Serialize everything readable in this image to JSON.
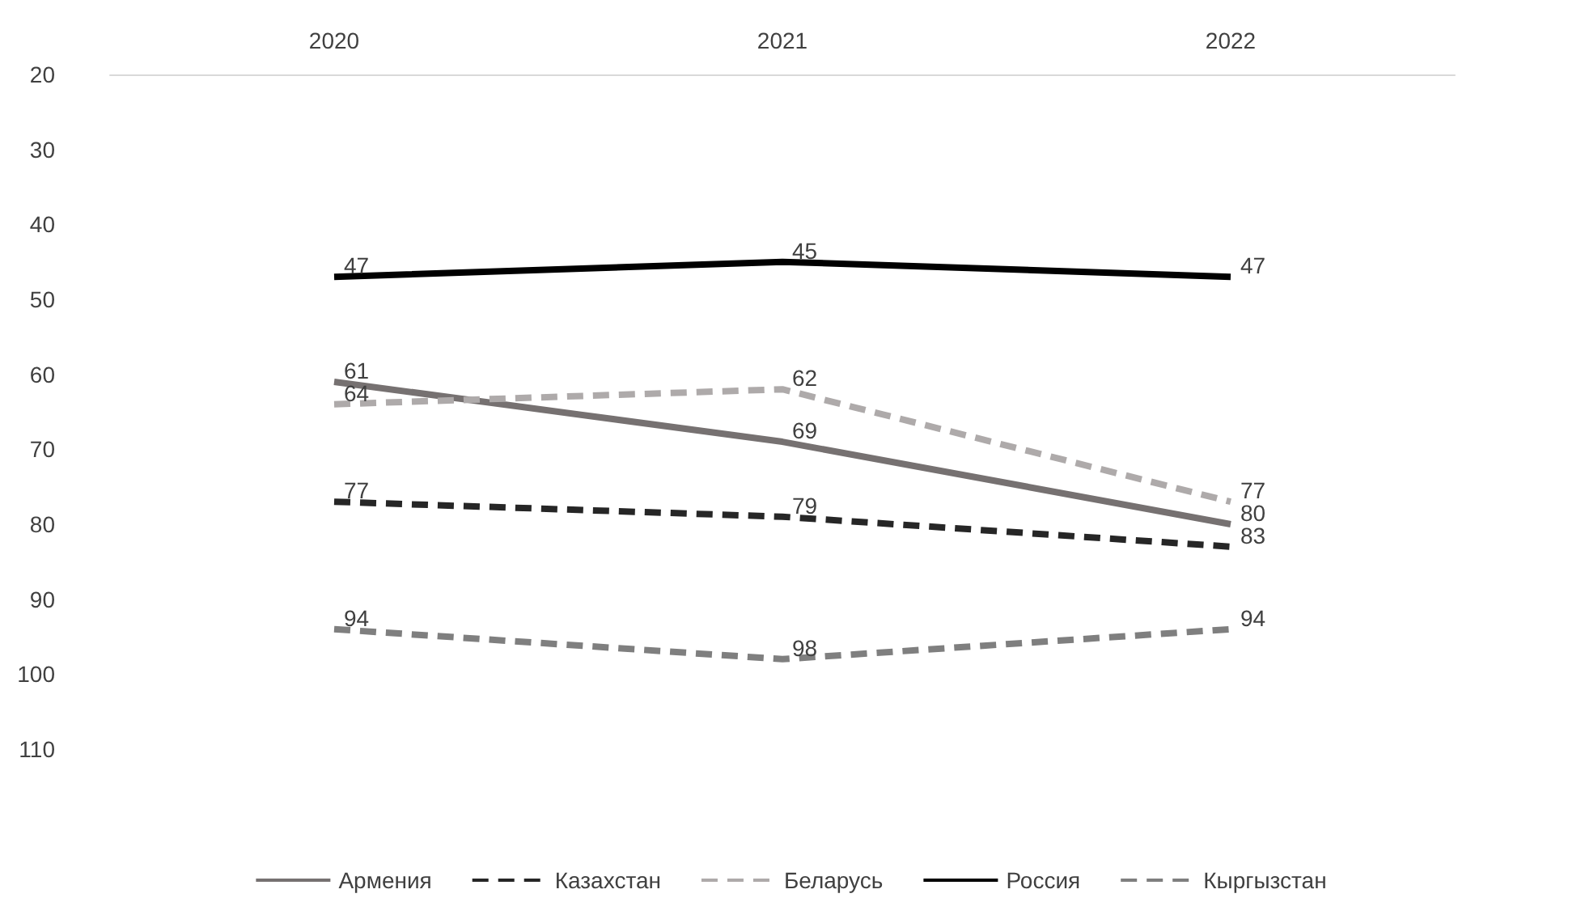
{
  "chart_data": {
    "type": "line",
    "categories": [
      "2020",
      "2021",
      "2022"
    ],
    "series": [
      {
        "name": "Армения",
        "color": "#767171",
        "line_style": "solid",
        "values": [
          61,
          69,
          80
        ]
      },
      {
        "name": "Казахстан",
        "color": "#262626",
        "line_style": "dashed",
        "values": [
          77,
          79,
          83
        ]
      },
      {
        "name": "Беларусь",
        "color": "#aeaaaa",
        "line_style": "dashed",
        "values": [
          64,
          62,
          77
        ]
      },
      {
        "name": "Россия",
        "color": "#000000",
        "line_style": "solid",
        "values": [
          47,
          45,
          47
        ]
      },
      {
        "name": "Кыргызстан",
        "color": "#7f7f7f",
        "line_style": "dashed",
        "values": [
          94,
          98,
          94
        ]
      }
    ],
    "ylim": [
      110,
      20
    ],
    "yticks": [
      20,
      30,
      40,
      50,
      60,
      70,
      80,
      90,
      100,
      110
    ],
    "grid": false,
    "legend": "bottom",
    "marker": "none",
    "data_labels": true
  }
}
